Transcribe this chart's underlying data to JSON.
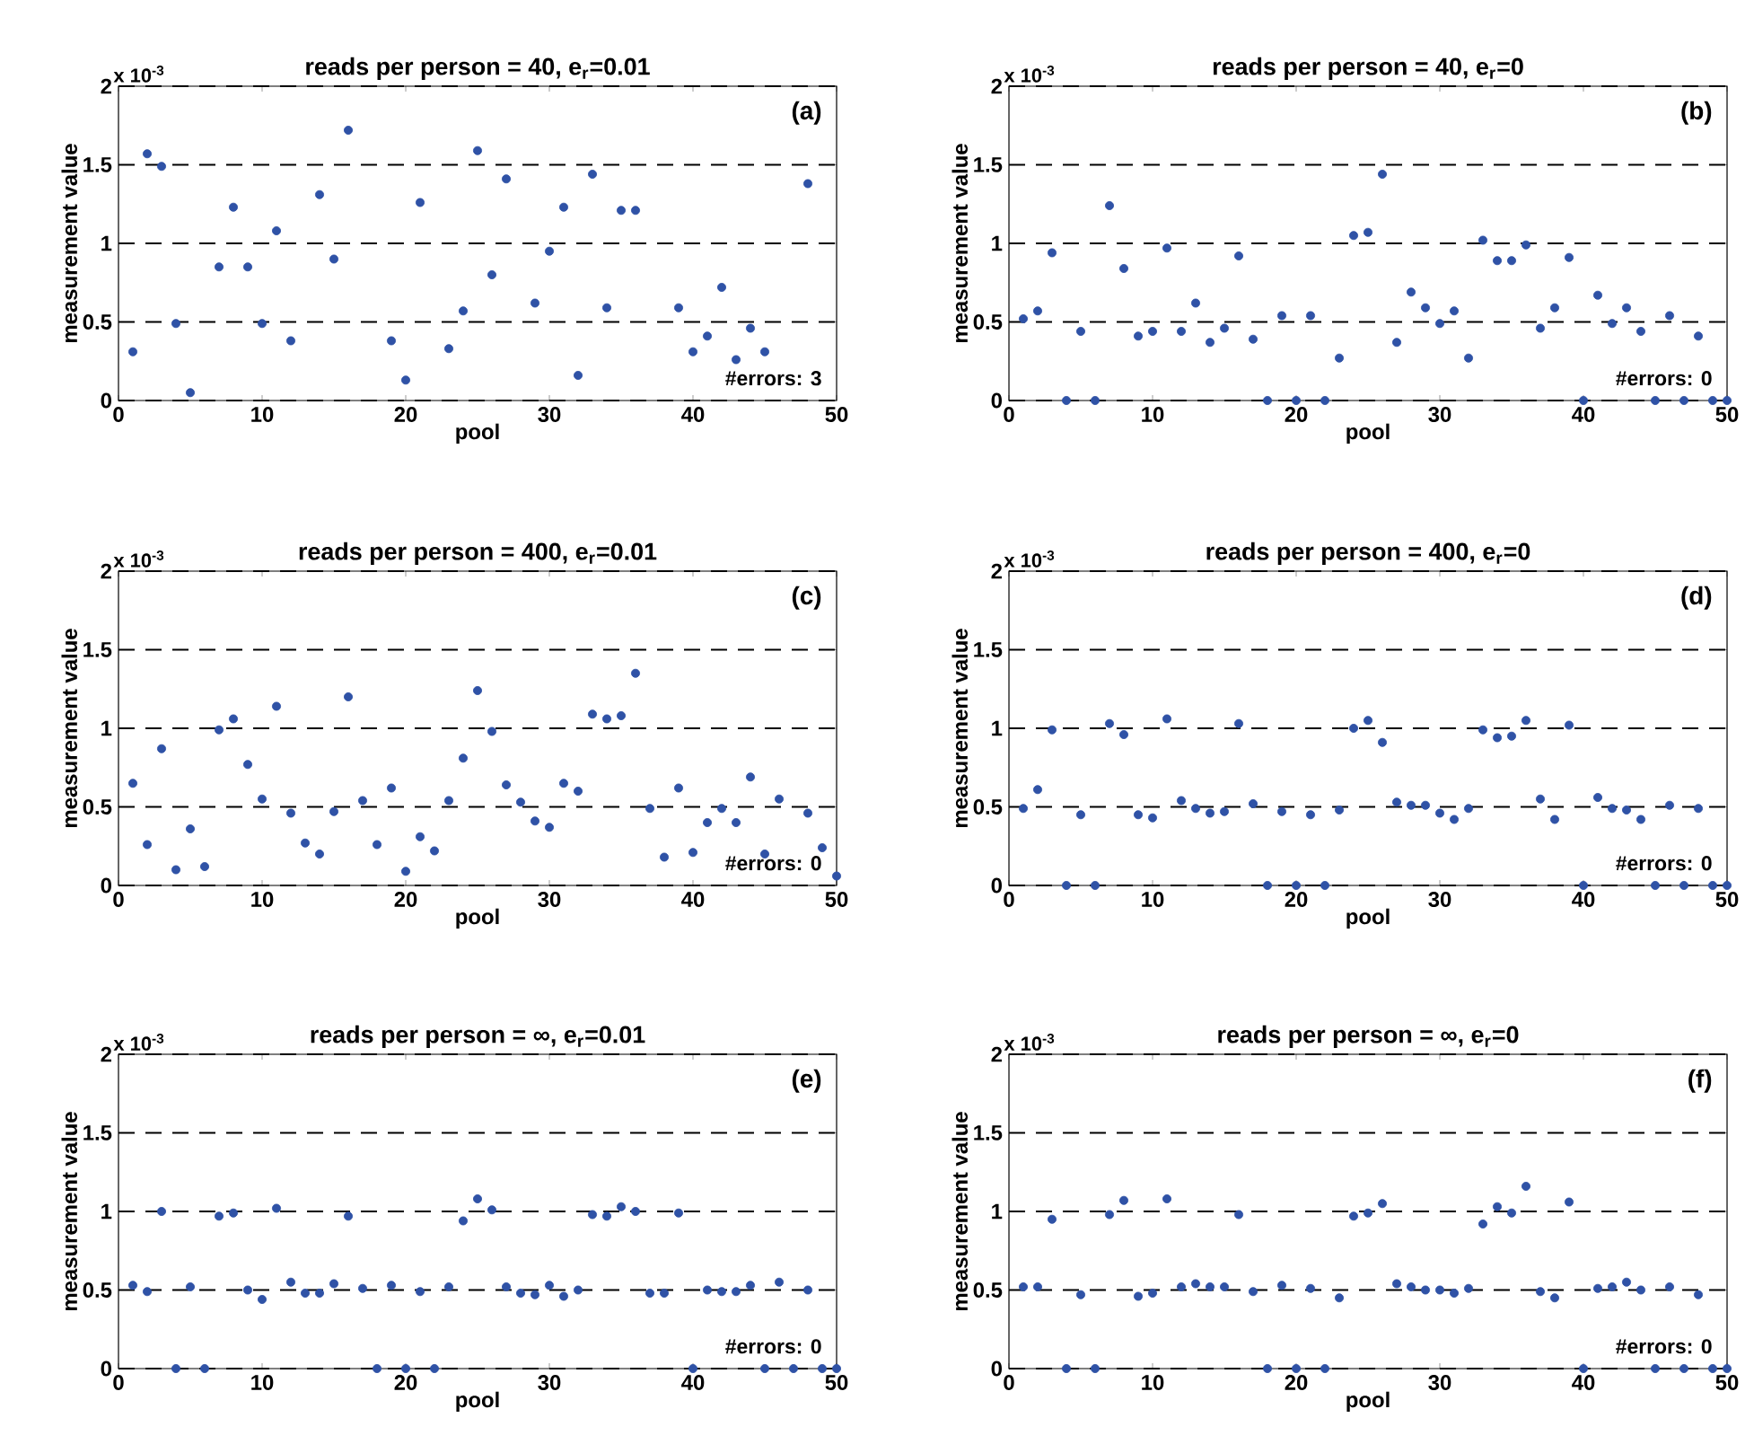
{
  "chart_data": [
    {
      "type": "scatter",
      "title": "reads per person = 40, e$_{r}$=0.01",
      "xlabel": "pool",
      "ylabel": "measurement value",
      "annotations": [
        "x 10$^{-3}$",
        "(a)",
        "#errors: 3"
      ],
      "xlim": [
        0,
        50
      ],
      "xticks": [
        0,
        10,
        20,
        30,
        40,
        50
      ],
      "ylim": [
        0,
        2
      ],
      "yticks": [
        0,
        0.5,
        1,
        1.5,
        2
      ],
      "grid": "y",
      "marker": "circle",
      "x": [
        1,
        2,
        3,
        4,
        5,
        6,
        7,
        8,
        9,
        10,
        11,
        12,
        13,
        14,
        15,
        16,
        17,
        18,
        19,
        20,
        21,
        22,
        23,
        24,
        25,
        26,
        27,
        28,
        29,
        30,
        31,
        32,
        33,
        34,
        35,
        36,
        37,
        38,
        39,
        40,
        41,
        42,
        43,
        44,
        45,
        46,
        47,
        48
      ],
      "series": [
        {
          "color": "#2f52a6",
          "values": [
            0.31,
            1.57,
            1.49,
            0.49,
            0.05,
            null,
            0.85,
            1.23,
            0.85,
            0.49,
            1.08,
            0.38,
            null,
            1.31,
            0.9,
            1.72,
            null,
            null,
            0.38,
            0.13,
            1.26,
            null,
            0.33,
            0.57,
            1.59,
            0.8,
            1.41,
            null,
            0.62,
            0.95,
            1.23,
            0.16,
            1.44,
            0.59,
            1.21,
            1.21,
            null,
            null,
            0.59,
            0.31,
            0.41,
            0.72,
            0.26,
            0.46,
            0.31,
            null,
            null,
            1.38
          ]
        }
      ]
    },
    {
      "type": "scatter",
      "title": "reads per person = 40, e$_{r}$=0",
      "xlabel": "pool",
      "ylabel": "measurement value",
      "annotations": [
        "x 10$^{-3}$",
        "(b)",
        "#errors: 0"
      ],
      "xlim": [
        0,
        50
      ],
      "xticks": [
        0,
        10,
        20,
        30,
        40,
        50
      ],
      "ylim": [
        0,
        2
      ],
      "yticks": [
        0,
        0.5,
        1,
        1.5,
        2
      ],
      "grid": "y",
      "marker": "circle",
      "x": [
        1,
        2,
        3,
        4,
        5,
        6,
        7,
        8,
        9,
        10,
        11,
        12,
        13,
        14,
        15,
        16,
        17,
        18,
        19,
        20,
        21,
        22,
        23,
        24,
        25,
        26,
        27,
        28,
        29,
        30,
        31,
        32,
        33,
        34,
        35,
        36,
        37,
        38,
        39,
        40,
        41,
        42,
        43,
        44,
        45,
        46,
        47,
        48,
        49,
        50
      ],
      "series": [
        {
          "color": "#2f52a6",
          "values": [
            0.52,
            0.57,
            0.94,
            0,
            0.44,
            0,
            1.24,
            0.84,
            0.41,
            0.44,
            0.97,
            0.44,
            0.62,
            0.37,
            0.46,
            0.92,
            0.39,
            0,
            0.54,
            0,
            0.54,
            0,
            0.27,
            1.05,
            1.07,
            1.44,
            0.37,
            0.69,
            0.59,
            0.49,
            0.57,
            0.27,
            1.02,
            0.89,
            0.89,
            0.99,
            0.46,
            0.59,
            0.91,
            0,
            0.67,
            0.49,
            0.59,
            0.44,
            0,
            0.54,
            0,
            0.41,
            0,
            0
          ]
        }
      ]
    },
    {
      "type": "scatter",
      "title": "reads per person = 400, e$_{r}$=0.01",
      "xlabel": "pool",
      "ylabel": "measurement value",
      "annotations": [
        "x 10$^{-3}$",
        "(c)",
        "#errors: 0"
      ],
      "xlim": [
        0,
        50
      ],
      "xticks": [
        0,
        10,
        20,
        30,
        40,
        50
      ],
      "ylim": [
        0,
        2
      ],
      "yticks": [
        0,
        0.5,
        1,
        1.5,
        2
      ],
      "grid": "y",
      "marker": "circle",
      "x": [
        1,
        2,
        3,
        4,
        5,
        6,
        7,
        8,
        9,
        10,
        11,
        12,
        13,
        14,
        15,
        16,
        17,
        18,
        19,
        20,
        21,
        22,
        23,
        24,
        25,
        26,
        27,
        28,
        29,
        30,
        31,
        32,
        33,
        34,
        35,
        36,
        37,
        38,
        39,
        40,
        41,
        42,
        43,
        44,
        45,
        46,
        47,
        48,
        49,
        50
      ],
      "series": [
        {
          "color": "#2f52a6",
          "values": [
            0.65,
            0.26,
            0.87,
            0.1,
            0.36,
            0.12,
            0.99,
            1.06,
            0.77,
            0.55,
            1.14,
            0.46,
            0.27,
            0.2,
            0.47,
            1.2,
            0.54,
            0.26,
            0.62,
            0.09,
            0.31,
            0.22,
            0.54,
            0.81,
            1.24,
            0.98,
            0.64,
            0.53,
            0.41,
            0.37,
            0.65,
            0.6,
            1.09,
            1.06,
            1.08,
            1.35,
            0.49,
            0.18,
            0.62,
            0.21,
            0.4,
            0.49,
            0.4,
            0.69,
            0.2,
            0.55,
            null,
            0.46,
            0.24,
            0.06
          ]
        }
      ]
    },
    {
      "type": "scatter",
      "title": "reads per person = 400, e$_{r}$=0",
      "xlabel": "pool",
      "ylabel": "measurement value",
      "annotations": [
        "x 10$^{-3}$",
        "(d)",
        "#errors: 0"
      ],
      "xlim": [
        0,
        50
      ],
      "xticks": [
        0,
        10,
        20,
        30,
        40,
        50
      ],
      "ylim": [
        0,
        2
      ],
      "yticks": [
        0,
        0.5,
        1,
        1.5,
        2
      ],
      "grid": "y",
      "marker": "circle",
      "x": [
        1,
        2,
        3,
        4,
        5,
        6,
        7,
        8,
        9,
        10,
        11,
        12,
        13,
        14,
        15,
        16,
        17,
        18,
        19,
        20,
        21,
        22,
        23,
        24,
        25,
        26,
        27,
        28,
        29,
        30,
        31,
        32,
        33,
        34,
        35,
        36,
        37,
        38,
        39,
        40,
        41,
        42,
        43,
        44,
        45,
        46,
        47,
        48,
        49,
        50
      ],
      "series": [
        {
          "color": "#2f52a6",
          "values": [
            0.49,
            0.61,
            0.99,
            0,
            0.45,
            0,
            1.03,
            0.96,
            0.45,
            0.43,
            1.06,
            0.54,
            0.49,
            0.46,
            0.47,
            1.03,
            0.52,
            0,
            0.47,
            0,
            0.45,
            0,
            0.48,
            1.0,
            1.05,
            0.91,
            0.53,
            0.51,
            0.51,
            0.46,
            0.42,
            0.49,
            0.99,
            0.94,
            0.95,
            1.05,
            0.55,
            0.42,
            1.02,
            0,
            0.56,
            0.49,
            0.48,
            0.42,
            0,
            0.51,
            0,
            0.49,
            0,
            0
          ]
        }
      ]
    },
    {
      "type": "scatter",
      "title": "reads per person = ∞, e$_{r}$=0.01",
      "xlabel": "pool",
      "ylabel": "measurement value",
      "annotations": [
        "x 10$^{-3}$",
        "(e)",
        "#errors: 0"
      ],
      "xlim": [
        0,
        50
      ],
      "xticks": [
        0,
        10,
        20,
        30,
        40,
        50
      ],
      "ylim": [
        0,
        2
      ],
      "yticks": [
        0,
        0.5,
        1,
        1.5,
        2
      ],
      "grid": "y",
      "marker": "circle",
      "x": [
        1,
        2,
        3,
        4,
        5,
        6,
        7,
        8,
        9,
        10,
        11,
        12,
        13,
        14,
        15,
        16,
        17,
        18,
        19,
        20,
        21,
        22,
        23,
        24,
        25,
        26,
        27,
        28,
        29,
        30,
        31,
        32,
        33,
        34,
        35,
        36,
        37,
        38,
        39,
        40,
        41,
        42,
        43,
        44,
        45,
        46,
        47,
        48,
        49,
        50
      ],
      "series": [
        {
          "color": "#2f52a6",
          "values": [
            0.53,
            0.49,
            1.0,
            0,
            0.52,
            0,
            0.97,
            0.99,
            0.5,
            0.44,
            1.02,
            0.55,
            0.48,
            0.48,
            0.54,
            0.97,
            0.51,
            0,
            0.53,
            0,
            0.49,
            0,
            0.52,
            0.94,
            1.08,
            1.01,
            0.52,
            0.48,
            0.47,
            0.53,
            0.46,
            0.5,
            0.98,
            0.97,
            1.03,
            1.0,
            0.48,
            0.48,
            0.99,
            0,
            0.5,
            0.49,
            0.49,
            0.53,
            0,
            0.55,
            0,
            0.5,
            0,
            0
          ]
        }
      ]
    },
    {
      "type": "scatter",
      "title": "reads per person = ∞, e$_{r}$=0",
      "xlabel": "pool",
      "ylabel": "measurement value",
      "annotations": [
        "x 10$^{-3}$",
        "(f)",
        "#errors: 0"
      ],
      "xlim": [
        0,
        50
      ],
      "xticks": [
        0,
        10,
        20,
        30,
        40,
        50
      ],
      "ylim": [
        0,
        2
      ],
      "yticks": [
        0,
        0.5,
        1,
        1.5,
        2
      ],
      "grid": "y",
      "marker": "circle",
      "x": [
        1,
        2,
        3,
        4,
        5,
        6,
        7,
        8,
        9,
        10,
        11,
        12,
        13,
        14,
        15,
        16,
        17,
        18,
        19,
        20,
        21,
        22,
        23,
        24,
        25,
        26,
        27,
        28,
        29,
        30,
        31,
        32,
        33,
        34,
        35,
        36,
        37,
        38,
        39,
        40,
        41,
        42,
        43,
        44,
        45,
        46,
        47,
        48,
        49,
        50
      ],
      "series": [
        {
          "color": "#2f52a6",
          "values": [
            0.52,
            0.52,
            0.95,
            0,
            0.47,
            0,
            0.98,
            1.07,
            0.46,
            0.48,
            1.08,
            0.52,
            0.54,
            0.52,
            0.52,
            0.98,
            0.49,
            0,
            0.53,
            0,
            0.51,
            0,
            0.45,
            0.97,
            0.99,
            1.05,
            0.54,
            0.52,
            0.5,
            0.5,
            0.48,
            0.51,
            0.92,
            1.03,
            0.99,
            1.16,
            0.49,
            0.45,
            1.06,
            0,
            0.51,
            0.52,
            0.55,
            0.5,
            0,
            0.52,
            0,
            0.47,
            0,
            0
          ]
        }
      ]
    }
  ]
}
